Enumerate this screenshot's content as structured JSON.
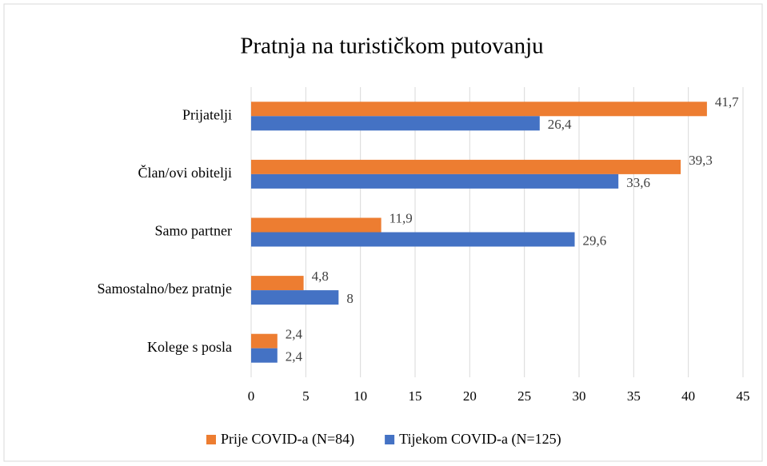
{
  "chart_data": {
    "type": "bar",
    "orientation": "horizontal",
    "title": "Pratnja na turističkom putovanju",
    "categories": [
      "Prijatelji",
      "Član/ovi obitelji",
      "Samo partner",
      "Samostalno/bez pratnje",
      "Kolege s posla"
    ],
    "series": [
      {
        "name": "Prije COVID-a (N=84)",
        "color": "#ed7d31",
        "values": [
          41.7,
          39.3,
          11.9,
          4.8,
          2.4
        ],
        "value_labels": [
          "41,7",
          "39,3",
          "11,9",
          "4,8",
          "2,4"
        ]
      },
      {
        "name": "Tijekom COVID-a (N=125)",
        "color": "#4472c4",
        "values": [
          26.4,
          33.6,
          29.6,
          8,
          2.4
        ],
        "value_labels": [
          "26,4",
          "33,6",
          "29,6",
          "8",
          "2,4"
        ]
      }
    ],
    "xlim": [
      0,
      45
    ],
    "xticks": [
      0,
      5,
      10,
      15,
      20,
      25,
      30,
      35,
      40,
      45
    ],
    "grid": true,
    "legend": "bottom"
  }
}
